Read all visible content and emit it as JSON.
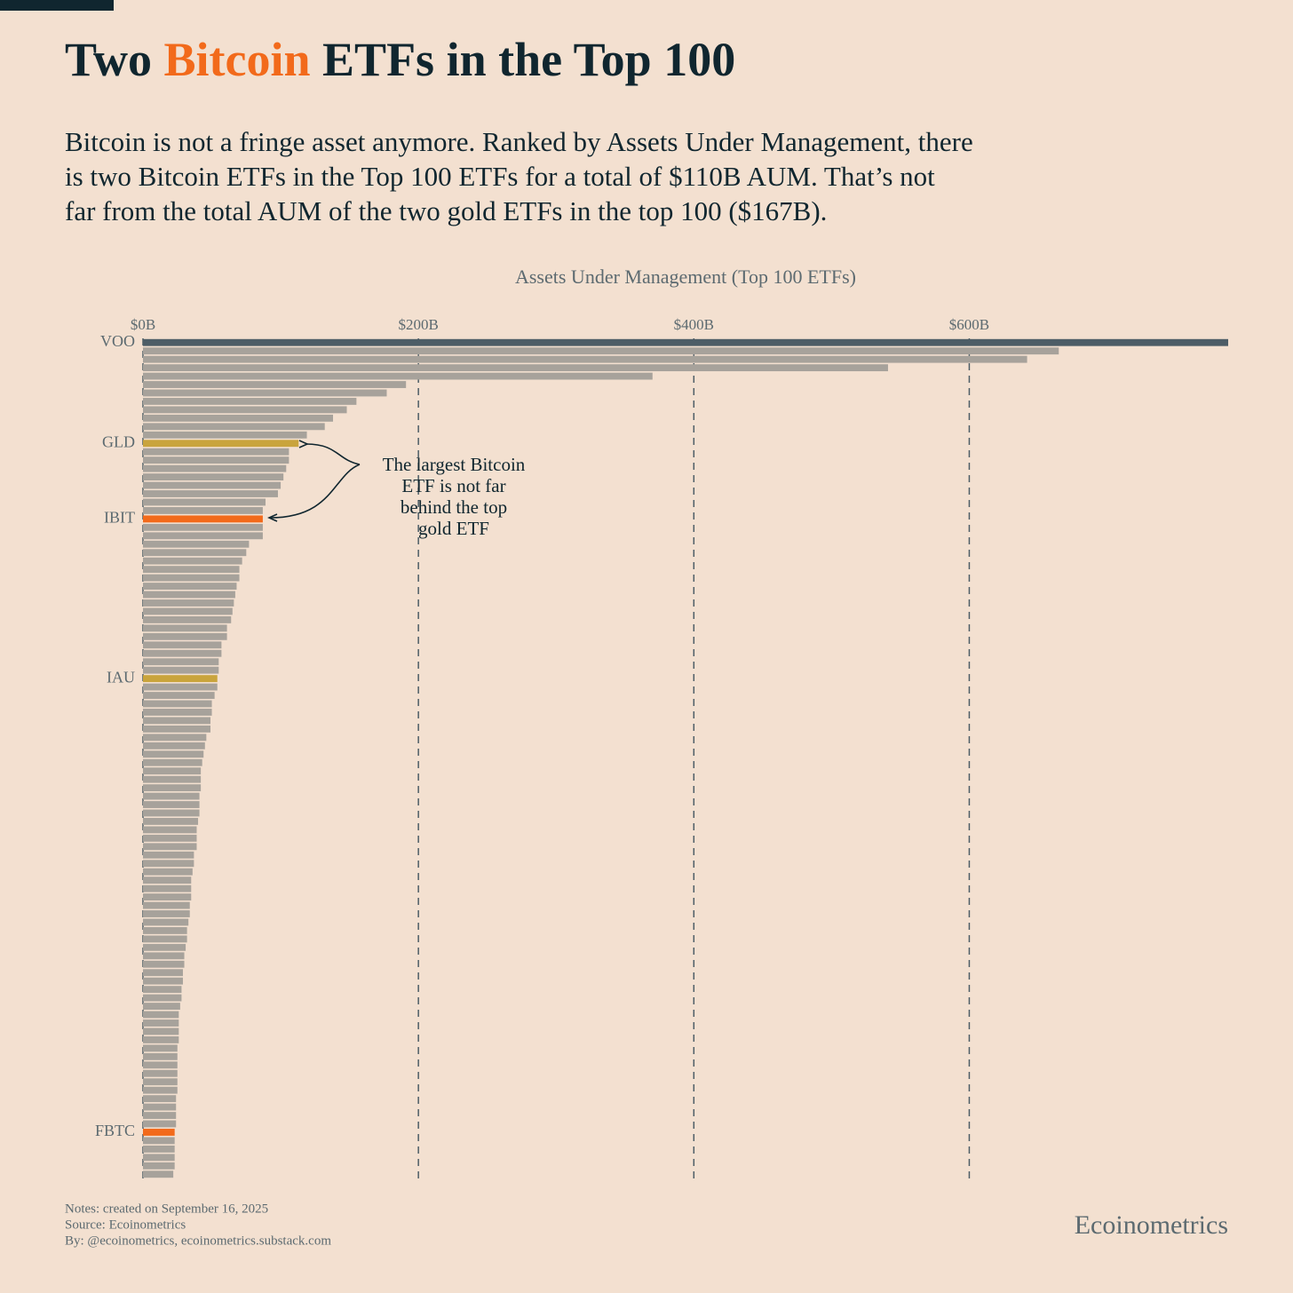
{
  "chart_data": {
    "type": "bar",
    "title_parts": [
      "Two",
      "Bitcoin",
      "ETFs in the Top 100"
    ],
    "title_highlight_color": "#f26a1b",
    "subtitle_lines": [
      "Bitcoin is not a fringe asset anymore. Ranked by Assets Under Management, there",
      "is two Bitcoin ETFs in the Top 100 ETFs for a total of $110B AUM. That’s not",
      "far from the total AUM of the two gold ETFs in the top 100 ($167B)."
    ],
    "x_axis_label": "Assets Under Management (Top 100 ETFs)",
    "categories": [
      "VOO",
      null,
      null,
      null,
      null,
      null,
      null,
      null,
      null,
      null,
      null,
      null,
      "GLD",
      null,
      null,
      null,
      null,
      null,
      null,
      null,
      null,
      "IBIT",
      null,
      null,
      null,
      null,
      null,
      null,
      null,
      null,
      null,
      null,
      null,
      null,
      null,
      null,
      null,
      null,
      null,
      null,
      "IAU",
      null,
      null,
      null,
      null,
      null,
      null,
      null,
      null,
      null,
      null,
      null,
      null,
      null,
      null,
      null,
      null,
      null,
      null,
      null,
      null,
      null,
      null,
      null,
      null,
      null,
      null,
      null,
      null,
      null,
      null,
      null,
      null,
      null,
      null,
      null,
      null,
      null,
      null,
      null,
      null,
      null,
      null,
      null,
      null,
      null,
      null,
      null,
      null,
      null,
      null,
      null,
      null,
      null,
      "FBTC",
      null,
      null,
      null,
      null,
      null
    ],
    "values": [
      788,
      665,
      642,
      541,
      370,
      191,
      177,
      155,
      148,
      138,
      132,
      119,
      113,
      106,
      106,
      104,
      102,
      100,
      98,
      89,
      87,
      87,
      87,
      87,
      77,
      75,
      72,
      70,
      70,
      68,
      67,
      66,
      65,
      64,
      61,
      61,
      57,
      57,
      55,
      55,
      54,
      54,
      52,
      50,
      50,
      49,
      49,
      46,
      45,
      44,
      43,
      42,
      42,
      42,
      41,
      41,
      41,
      40,
      39,
      39,
      39,
      37,
      37,
      36,
      35,
      35,
      35,
      34,
      34,
      33,
      32,
      32,
      31,
      30,
      30,
      29,
      29,
      28,
      28,
      27,
      26,
      26,
      26,
      26,
      25,
      25,
      25,
      25,
      25,
      25,
      24,
      24,
      24,
      24,
      23,
      23,
      23,
      23,
      23,
      22
    ],
    "color": "#a7a29b",
    "highlight_colors": {
      "0": "#4d5d66",
      "12": "#c9a43c",
      "21": "#f26a1b",
      "40": "#c9a43c",
      "94": "#f26a1b"
    },
    "xlim": [
      0,
      788
    ],
    "xticks": [
      {
        "value": 0,
        "label": "$0B"
      },
      {
        "value": 200,
        "label": "$200B"
      },
      {
        "value": 400,
        "label": "$400B"
      },
      {
        "value": 600,
        "label": "$600B"
      }
    ],
    "grid": true,
    "annotation_lines": [
      "The largest Bitcoin",
      "ETF is not far",
      "behind the top",
      "gold ETF"
    ],
    "notes": [
      "Notes: created on September 16, 2025",
      "Source: Ecoinometrics",
      "By: @ecoinometrics, ecoinometrics.substack.com"
    ],
    "brand": "Ecoinometrics"
  }
}
